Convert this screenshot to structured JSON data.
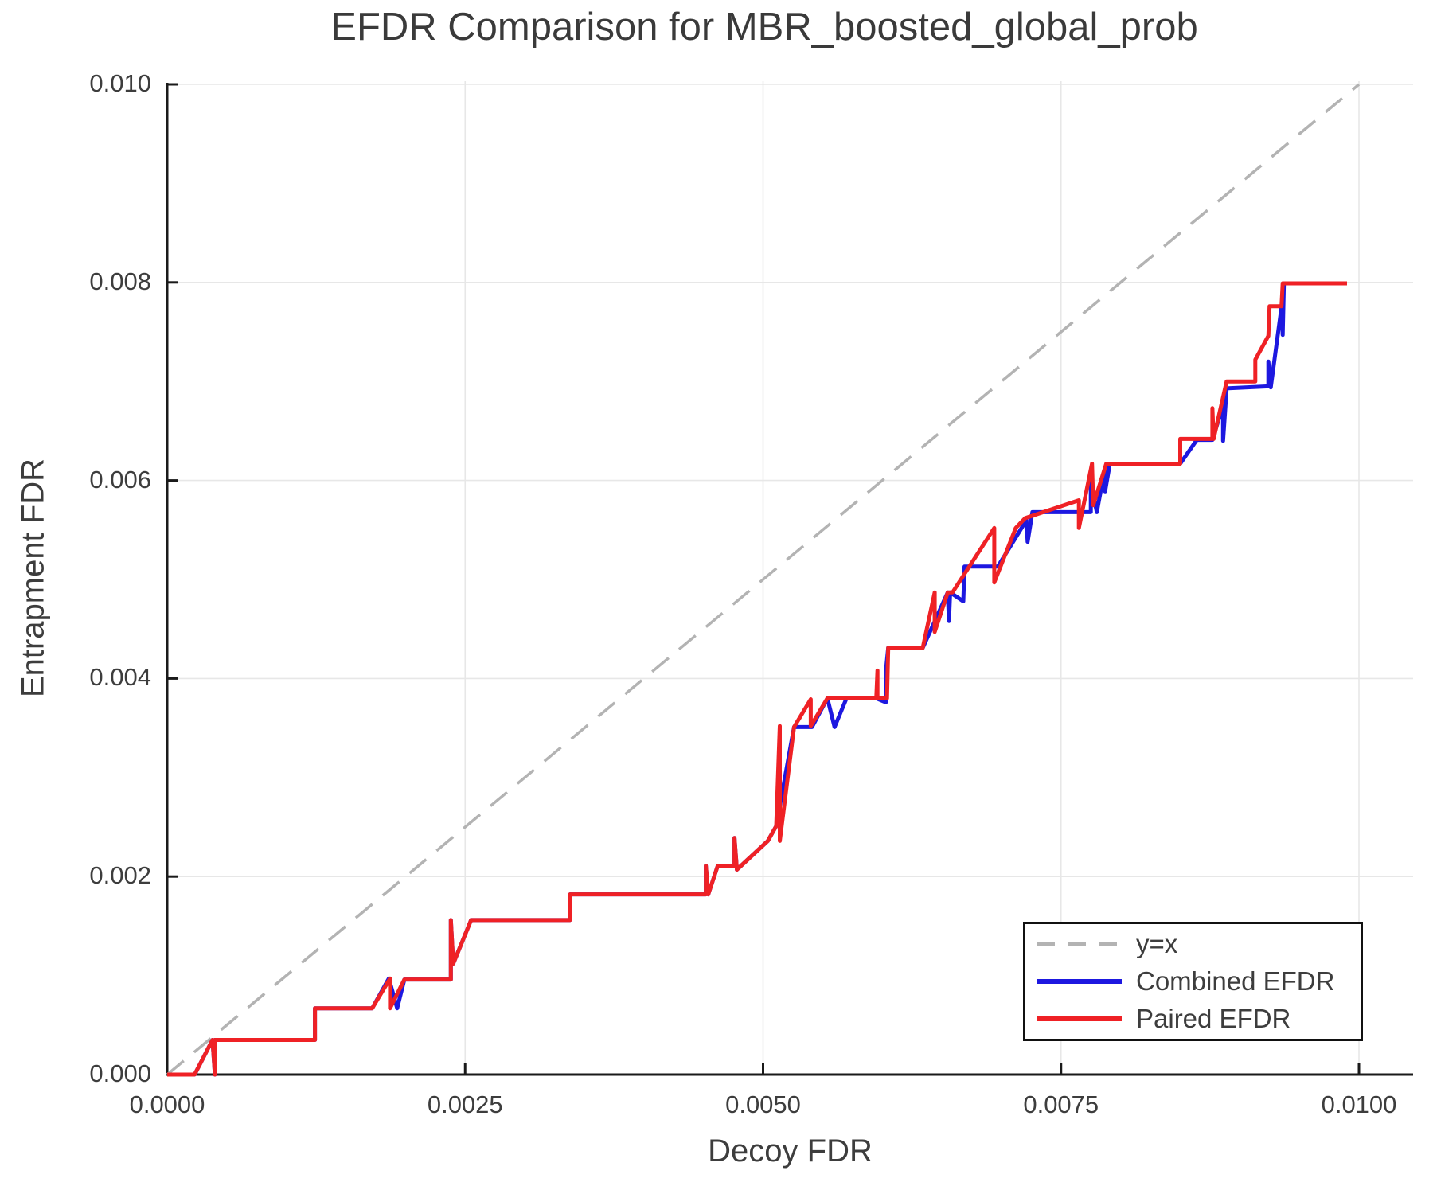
{
  "title": "EFDR Comparison for MBR_boosted_global_prob",
  "axes": {
    "xlabel": "Decoy FDR",
    "ylabel": "Entrapment FDR",
    "x_tick_labels": [
      "0.0000",
      "0.0025",
      "0.0050",
      "0.0075",
      "0.0100"
    ],
    "y_tick_labels": [
      "0.000",
      "0.002",
      "0.004",
      "0.006",
      "0.008",
      "0.010"
    ]
  },
  "legend": {
    "entries": [
      {
        "label": "y=x",
        "color": "#b3b3b3",
        "style": "dashed"
      },
      {
        "label": "Combined EFDR",
        "color": "#1d18e0",
        "style": "solid"
      },
      {
        "label": "Paired EFDR",
        "color": "#ef2125",
        "style": "solid"
      }
    ]
  },
  "colors": {
    "combined_blue": "#1d18e0",
    "paired_red": "#ef2125",
    "identity_gray": "#b3b3b3",
    "grid": "#e7e7e7",
    "spine": "#1a1a1a",
    "text": "#3d3d3d"
  },
  "chart_data": {
    "type": "line",
    "title": "EFDR Comparison for MBR_boosted_global_prob",
    "xlabel": "Decoy FDR",
    "ylabel": "Entrapment FDR",
    "xlim": [
      0.0,
      0.01
    ],
    "ylim": [
      0.0,
      0.01
    ],
    "grid": true,
    "legend_position": "lower right",
    "x_tick_values": [
      0.0,
      0.0025,
      0.005,
      0.0075,
      0.01
    ],
    "y_tick_values": [
      0.0,
      0.002,
      0.004,
      0.006,
      0.008,
      0.01
    ],
    "series": [
      {
        "name": "y=x",
        "style": "dashed",
        "color": "#b3b3b3",
        "points": [
          [
            0.0,
            0.0
          ],
          [
            0.01,
            0.01
          ]
        ]
      },
      {
        "name": "Combined EFDR",
        "style": "solid",
        "color": "#1d18e0",
        "points": [
          [
            0.0,
            0.0
          ],
          [
            0.00023,
            0.0
          ],
          [
            0.00038,
            0.00035
          ],
          [
            0.0004,
            0.0
          ],
          [
            0.0004,
            0.00035
          ],
          [
            0.00124,
            0.00035
          ],
          [
            0.00124,
            0.00067
          ],
          [
            0.00172,
            0.00067
          ],
          [
            0.00186,
            0.00097
          ],
          [
            0.00193,
            0.00067
          ],
          [
            0.00199,
            0.00096
          ],
          [
            0.00238,
            0.00096
          ],
          [
            0.00238,
            0.00156
          ],
          [
            0.0024,
            0.00112
          ],
          [
            0.00255,
            0.00156
          ],
          [
            0.00338,
            0.00156
          ],
          [
            0.00338,
            0.00182
          ],
          [
            0.00452,
            0.00182
          ],
          [
            0.00452,
            0.00211
          ],
          [
            0.00454,
            0.00182
          ],
          [
            0.00462,
            0.00211
          ],
          [
            0.00476,
            0.00211
          ],
          [
            0.00476,
            0.00239
          ],
          [
            0.00478,
            0.00207
          ],
          [
            0.00504,
            0.00236
          ],
          [
            0.00511,
            0.00251
          ],
          [
            0.00526,
            0.00351
          ],
          [
            0.00541,
            0.00351
          ],
          [
            0.00554,
            0.0038
          ],
          [
            0.0056,
            0.00351
          ],
          [
            0.0057,
            0.0038
          ],
          [
            0.00595,
            0.0038
          ],
          [
            0.00603,
            0.00376
          ],
          [
            0.00603,
            0.00407
          ],
          [
            0.00605,
            0.00431
          ],
          [
            0.00634,
            0.00431
          ],
          [
            0.00655,
            0.00487
          ],
          [
            0.00656,
            0.00458
          ],
          [
            0.00657,
            0.00487
          ],
          [
            0.00668,
            0.00478
          ],
          [
            0.00669,
            0.00513
          ],
          [
            0.00697,
            0.00513
          ],
          [
            0.00721,
            0.0056
          ],
          [
            0.00722,
            0.00538
          ],
          [
            0.00726,
            0.00568
          ],
          [
            0.00775,
            0.00568
          ],
          [
            0.00775,
            0.00598
          ],
          [
            0.0078,
            0.00568
          ],
          [
            0.00787,
            0.00613
          ],
          [
            0.00787,
            0.00589
          ],
          [
            0.00791,
            0.00617
          ],
          [
            0.0085,
            0.00617
          ],
          [
            0.00864,
            0.00641
          ],
          [
            0.00877,
            0.00641
          ],
          [
            0.00886,
            0.00676
          ],
          [
            0.00886,
            0.0064
          ],
          [
            0.00889,
            0.00693
          ],
          [
            0.00924,
            0.00695
          ],
          [
            0.00924,
            0.0072
          ],
          [
            0.00926,
            0.00694
          ],
          [
            0.00935,
            0.00775
          ],
          [
            0.00936,
            0.00747
          ],
          [
            0.00937,
            0.00799
          ],
          [
            0.00985,
            0.00799
          ]
        ]
      },
      {
        "name": "Paired EFDR",
        "style": "solid",
        "color": "#ef2125",
        "points": [
          [
            0.0,
            0.0
          ],
          [
            0.00023,
            0.0
          ],
          [
            0.00038,
            0.00035
          ],
          [
            0.0004,
            0.0
          ],
          [
            0.0004,
            0.00035
          ],
          [
            0.00124,
            0.00035
          ],
          [
            0.00124,
            0.00067
          ],
          [
            0.00172,
            0.00067
          ],
          [
            0.00187,
            0.00097
          ],
          [
            0.00187,
            0.00067
          ],
          [
            0.00199,
            0.00096
          ],
          [
            0.00238,
            0.00096
          ],
          [
            0.00238,
            0.00156
          ],
          [
            0.0024,
            0.00112
          ],
          [
            0.00255,
            0.00156
          ],
          [
            0.00338,
            0.00156
          ],
          [
            0.00338,
            0.00182
          ],
          [
            0.00452,
            0.00182
          ],
          [
            0.00452,
            0.00211
          ],
          [
            0.00454,
            0.00182
          ],
          [
            0.00462,
            0.00211
          ],
          [
            0.00476,
            0.00211
          ],
          [
            0.00476,
            0.00239
          ],
          [
            0.00478,
            0.00207
          ],
          [
            0.00504,
            0.00236
          ],
          [
            0.00511,
            0.00251
          ],
          [
            0.00514,
            0.00352
          ],
          [
            0.00514,
            0.00236
          ],
          [
            0.00526,
            0.00351
          ],
          [
            0.0054,
            0.00379
          ],
          [
            0.0054,
            0.00352
          ],
          [
            0.00554,
            0.0038
          ],
          [
            0.0057,
            0.0038
          ],
          [
            0.00595,
            0.0038
          ],
          [
            0.00596,
            0.00408
          ],
          [
            0.00596,
            0.0038
          ],
          [
            0.00604,
            0.0038
          ],
          [
            0.00605,
            0.00431
          ],
          [
            0.00634,
            0.00431
          ],
          [
            0.00644,
            0.00487
          ],
          [
            0.00644,
            0.00447
          ],
          [
            0.00655,
            0.00487
          ],
          [
            0.00659,
            0.00487
          ],
          [
            0.00694,
            0.00552
          ],
          [
            0.00694,
            0.00497
          ],
          [
            0.00712,
            0.00552
          ],
          [
            0.0072,
            0.00562
          ],
          [
            0.00765,
            0.0058
          ],
          [
            0.00765,
            0.00552
          ],
          [
            0.00776,
            0.00617
          ],
          [
            0.00777,
            0.00575
          ],
          [
            0.00788,
            0.00617
          ],
          [
            0.0085,
            0.00617
          ],
          [
            0.0085,
            0.00642
          ],
          [
            0.00877,
            0.00642
          ],
          [
            0.00877,
            0.00673
          ],
          [
            0.00878,
            0.00642
          ],
          [
            0.00889,
            0.007
          ],
          [
            0.00913,
            0.007
          ],
          [
            0.00913,
            0.00722
          ],
          [
            0.00924,
            0.00746
          ],
          [
            0.00925,
            0.00776
          ],
          [
            0.00935,
            0.00776
          ],
          [
            0.00936,
            0.00799
          ],
          [
            0.0099,
            0.00799
          ]
        ]
      }
    ]
  }
}
